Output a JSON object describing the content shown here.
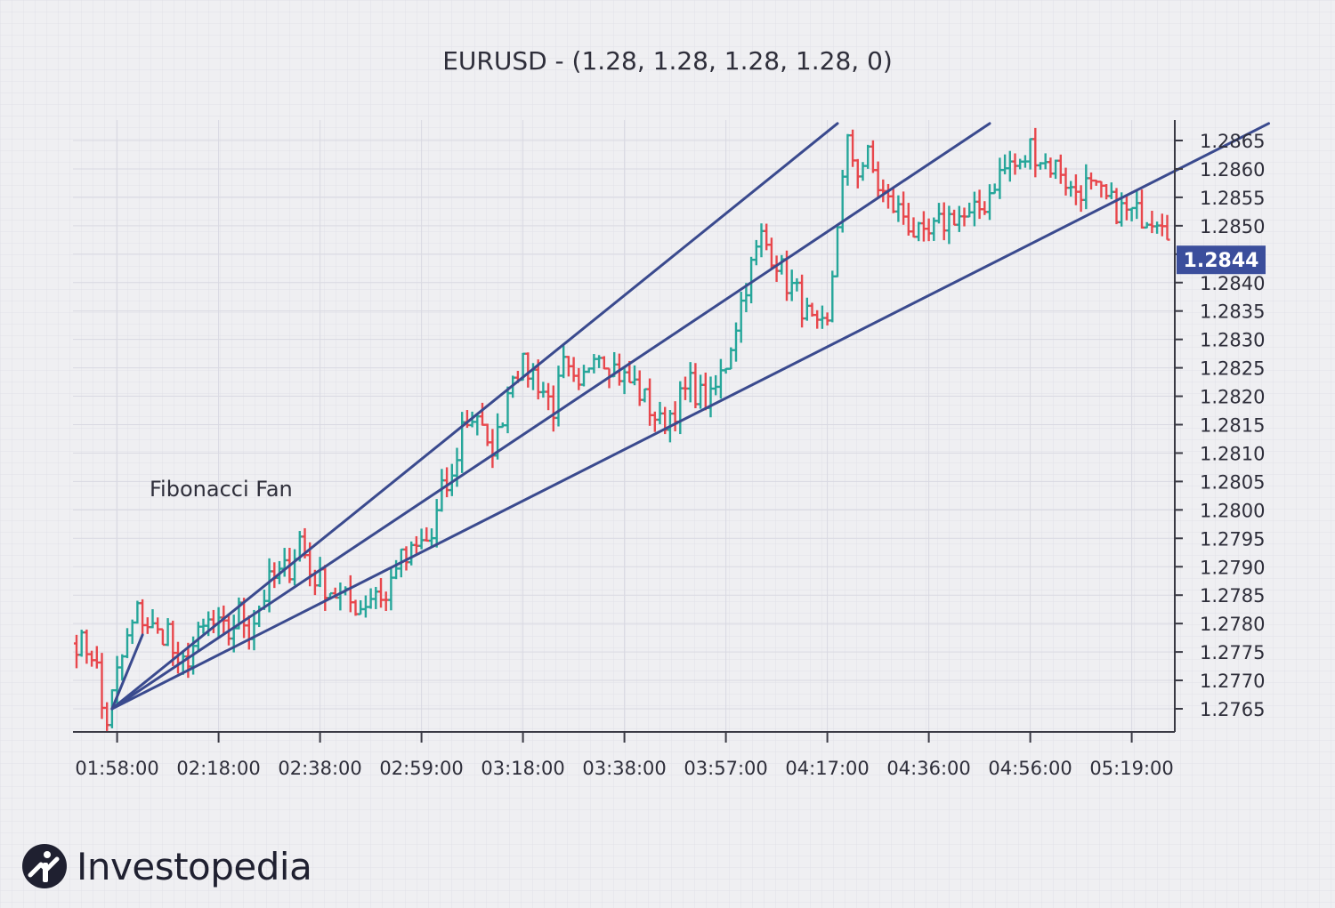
{
  "chart_data": {
    "type": "candlestick",
    "title": "EURUSD - (1.28, 1.28, 1.28, 1.28, 0)",
    "annotation": "Fibonacci Fan",
    "last_price": "1.2844",
    "ylim": [
      1.2761,
      1.2869
    ],
    "y_ticks": [
      "1.2765",
      "1.2770",
      "1.2775",
      "1.2780",
      "1.2785",
      "1.2790",
      "1.2795",
      "1.2800",
      "1.2805",
      "1.2810",
      "1.2815",
      "1.2820",
      "1.2825",
      "1.2830",
      "1.2835",
      "1.2840",
      "1.2845",
      "1.2850",
      "1.2855",
      "1.2860",
      "1.2865"
    ],
    "x_ticks": [
      "01:58:00",
      "02:18:00",
      "02:38:00",
      "02:59:00",
      "03:18:00",
      "03:38:00",
      "03:57:00",
      "04:17:00",
      "04:36:00",
      "04:56:00",
      "05:19:00"
    ],
    "x_tick_index": [
      8,
      28,
      48,
      68,
      88,
      108,
      128,
      148,
      168,
      188,
      208
    ],
    "bars": 216,
    "anchors": [
      [
        0,
        1.2777
      ],
      [
        3,
        1.2775
      ],
      [
        4,
        1.2772
      ],
      [
        5,
        1.2765
      ],
      [
        6,
        1.2763
      ],
      [
        8,
        1.2771
      ],
      [
        10,
        1.2777
      ],
      [
        12,
        1.2782
      ],
      [
        14,
        1.278
      ],
      [
        16,
        1.2778
      ],
      [
        18,
        1.2779
      ],
      [
        20,
        1.2771
      ],
      [
        23,
        1.2776
      ],
      [
        26,
        1.278
      ],
      [
        30,
        1.2778
      ],
      [
        32,
        1.2782
      ],
      [
        34,
        1.2779
      ],
      [
        38,
        1.2787
      ],
      [
        42,
        1.279
      ],
      [
        44,
        1.2795
      ],
      [
        46,
        1.2789
      ],
      [
        50,
        1.2786
      ],
      [
        53,
        1.2784
      ],
      [
        56,
        1.2783
      ],
      [
        59,
        1.2786
      ],
      [
        61,
        1.2784
      ],
      [
        63,
        1.2791
      ],
      [
        65,
        1.2791
      ],
      [
        68,
        1.2794
      ],
      [
        70,
        1.2795
      ],
      [
        72,
        1.2803
      ],
      [
        74,
        1.2805
      ],
      [
        76,
        1.2815
      ],
      [
        79,
        1.2817
      ],
      [
        81,
        1.281
      ],
      [
        83,
        1.2813
      ],
      [
        86,
        1.2825
      ],
      [
        88,
        1.2825
      ],
      [
        90,
        1.2824
      ],
      [
        92,
        1.2821
      ],
      [
        94,
        1.2818
      ],
      [
        96,
        1.2825
      ],
      [
        99,
        1.282
      ],
      [
        102,
        1.2829
      ],
      [
        104,
        1.2827
      ],
      [
        106,
        1.2825
      ],
      [
        108,
        1.2823
      ],
      [
        110,
        1.2822
      ],
      [
        113,
        1.2818
      ],
      [
        115,
        1.2815
      ],
      [
        118,
        1.2818
      ],
      [
        121,
        1.2822
      ],
      [
        123,
        1.282
      ],
      [
        125,
        1.2819
      ],
      [
        128,
        1.2826
      ],
      [
        130,
        1.2833
      ],
      [
        132,
        1.284
      ],
      [
        135,
        1.2848
      ],
      [
        138,
        1.2844
      ],
      [
        140,
        1.284
      ],
      [
        142,
        1.2838
      ],
      [
        144,
        1.2834
      ],
      [
        146,
        1.2831
      ],
      [
        148,
        1.2832
      ],
      [
        150,
        1.2851
      ],
      [
        152,
        1.2864
      ],
      [
        154,
        1.286
      ],
      [
        156,
        1.2862
      ],
      [
        158,
        1.2857
      ],
      [
        160,
        1.2854
      ],
      [
        163,
        1.2852
      ],
      [
        165,
        1.2849
      ],
      [
        167,
        1.2847
      ],
      [
        170,
        1.285
      ],
      [
        173,
        1.2852
      ],
      [
        176,
        1.2851
      ],
      [
        179,
        1.2854
      ],
      [
        181,
        1.2858
      ],
      [
        184,
        1.2861
      ],
      [
        186,
        1.286
      ],
      [
        188,
        1.2864
      ],
      [
        191,
        1.2861
      ],
      [
        194,
        1.286
      ],
      [
        196,
        1.2856
      ],
      [
        199,
        1.2857
      ],
      [
        202,
        1.2855
      ],
      [
        205,
        1.2853
      ],
      [
        208,
        1.2852
      ],
      [
        211,
        1.2852
      ],
      [
        214,
        1.2852
      ],
      [
        216,
        1.2848
      ],
      [
        218,
        1.2845
      ],
      [
        220,
        1.2842
      ],
      [
        222,
        1.2841
      ],
      [
        224,
        1.2844
      ],
      [
        227,
        1.2843
      ],
      [
        230,
        1.2845
      ],
      [
        233,
        1.2845
      ],
      [
        236,
        1.2845
      ]
    ],
    "fan": {
      "origin": [
        7,
        1.2765
      ],
      "lines": [
        {
          "through": [
            13,
            1.2778
          ]
        },
        {
          "through": [
            150,
            1.2868
          ]
        },
        {
          "through": [
            180,
            1.2868
          ]
        },
        {
          "through": [
            235,
            1.2868
          ]
        }
      ]
    },
    "colors": {
      "up": "#26a69a",
      "down": "#e8474c",
      "fan": "#3a4a8e",
      "label_bg": "#3b4e9c",
      "grid": "#d9d9e2",
      "axis": "#3a3a44"
    },
    "grid": true
  },
  "logo": {
    "text": "Investopedia",
    "icon": "investopedia-logo-icon"
  }
}
